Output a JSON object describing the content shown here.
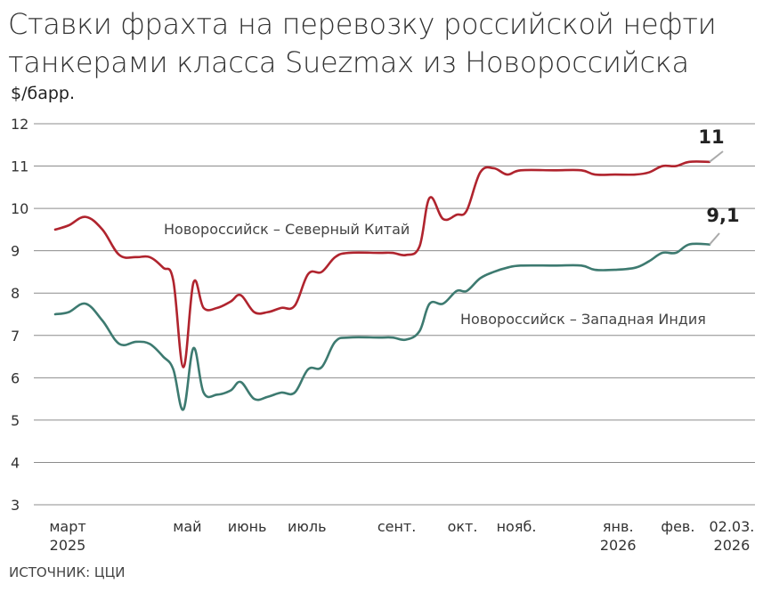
{
  "title_lines": [
    "Ставки фрахта на перевозку российской нефти",
    "танкерами класса Suezmax из Новороссийска"
  ],
  "source": "ИСТОЧНИК: ЦЦИ",
  "chart_data": {
    "type": "line",
    "title": "Ставки фрахта на перевозку российской нефти танкерами класса Suezmax из Новороссийска",
    "ylabel": "$/барр.",
    "ylim": [
      3,
      12
    ],
    "yticks": [
      3,
      4,
      5,
      6,
      7,
      8,
      9,
      10,
      11,
      12
    ],
    "grid": true,
    "x_axis_labels": [
      {
        "label": "март",
        "sub": "2025",
        "x": 0
      },
      {
        "label": "май",
        "sub": "",
        "x": 2
      },
      {
        "label": "июнь",
        "sub": "",
        "x": 3
      },
      {
        "label": "июль",
        "sub": "",
        "x": 4
      },
      {
        "label": "сент.",
        "sub": "",
        "x": 5.5
      },
      {
        "label": "окт.",
        "sub": "",
        "x": 6.6
      },
      {
        "label": "нояб.",
        "sub": "",
        "x": 7.5
      },
      {
        "label": "янв.",
        "sub": "2026",
        "x": 9.2
      },
      {
        "label": "фев.",
        "sub": "",
        "x": 10.2
      },
      {
        "label": "02.03.",
        "sub": "2026",
        "x": 11.1
      }
    ],
    "series": [
      {
        "name": "Новороссийск – Северный Китай",
        "color": "#b0242e",
        "end_label": "11",
        "points": [
          [
            0,
            9.5
          ],
          [
            0.2,
            9.6
          ],
          [
            0.45,
            9.8
          ],
          [
            0.7,
            9.5
          ],
          [
            0.95,
            8.9
          ],
          [
            1.2,
            8.85
          ],
          [
            1.4,
            8.85
          ],
          [
            1.6,
            8.6
          ],
          [
            1.75,
            8.3
          ],
          [
            1.9,
            6.25
          ],
          [
            2.05,
            8.25
          ],
          [
            2.2,
            7.65
          ],
          [
            2.4,
            7.65
          ],
          [
            2.6,
            7.8
          ],
          [
            2.75,
            7.95
          ],
          [
            2.95,
            7.55
          ],
          [
            3.15,
            7.55
          ],
          [
            3.35,
            7.65
          ],
          [
            3.55,
            7.7
          ],
          [
            3.75,
            8.45
          ],
          [
            3.95,
            8.5
          ],
          [
            4.15,
            8.85
          ],
          [
            4.35,
            8.95
          ],
          [
            4.8,
            8.95
          ],
          [
            5.0,
            8.95
          ],
          [
            5.2,
            8.9
          ],
          [
            5.4,
            9.1
          ],
          [
            5.55,
            10.25
          ],
          [
            5.75,
            9.75
          ],
          [
            5.95,
            9.85
          ],
          [
            6.1,
            9.95
          ],
          [
            6.3,
            10.85
          ],
          [
            6.5,
            10.95
          ],
          [
            6.7,
            10.8
          ],
          [
            6.9,
            10.9
          ],
          [
            7.4,
            10.9
          ],
          [
            7.8,
            10.9
          ],
          [
            8.0,
            10.8
          ],
          [
            8.3,
            10.8
          ],
          [
            8.6,
            10.8
          ],
          [
            8.8,
            10.85
          ],
          [
            9.0,
            11.0
          ],
          [
            9.2,
            11.0
          ],
          [
            9.4,
            11.1
          ],
          [
            9.7,
            11.1
          ]
        ]
      },
      {
        "name": "Новороссийск – Западная Индия",
        "color": "#3d7a70",
        "end_label": "9,1",
        "points": [
          [
            0,
            7.5
          ],
          [
            0.2,
            7.55
          ],
          [
            0.45,
            7.75
          ],
          [
            0.7,
            7.35
          ],
          [
            0.95,
            6.8
          ],
          [
            1.2,
            6.85
          ],
          [
            1.4,
            6.8
          ],
          [
            1.6,
            6.5
          ],
          [
            1.75,
            6.2
          ],
          [
            1.9,
            5.25
          ],
          [
            2.05,
            6.7
          ],
          [
            2.2,
            5.65
          ],
          [
            2.4,
            5.6
          ],
          [
            2.6,
            5.7
          ],
          [
            2.75,
            5.9
          ],
          [
            2.95,
            5.5
          ],
          [
            3.15,
            5.55
          ],
          [
            3.35,
            5.65
          ],
          [
            3.55,
            5.65
          ],
          [
            3.75,
            6.2
          ],
          [
            3.95,
            6.25
          ],
          [
            4.15,
            6.85
          ],
          [
            4.35,
            6.95
          ],
          [
            4.8,
            6.95
          ],
          [
            5.0,
            6.95
          ],
          [
            5.2,
            6.9
          ],
          [
            5.4,
            7.1
          ],
          [
            5.55,
            7.75
          ],
          [
            5.75,
            7.75
          ],
          [
            5.95,
            8.05
          ],
          [
            6.1,
            8.05
          ],
          [
            6.3,
            8.35
          ],
          [
            6.5,
            8.5
          ],
          [
            6.7,
            8.6
          ],
          [
            6.9,
            8.65
          ],
          [
            7.4,
            8.65
          ],
          [
            7.8,
            8.65
          ],
          [
            8.0,
            8.55
          ],
          [
            8.3,
            8.55
          ],
          [
            8.6,
            8.6
          ],
          [
            8.8,
            8.75
          ],
          [
            9.0,
            8.95
          ],
          [
            9.2,
            8.95
          ],
          [
            9.4,
            9.15
          ],
          [
            9.7,
            9.15
          ]
        ]
      }
    ]
  }
}
